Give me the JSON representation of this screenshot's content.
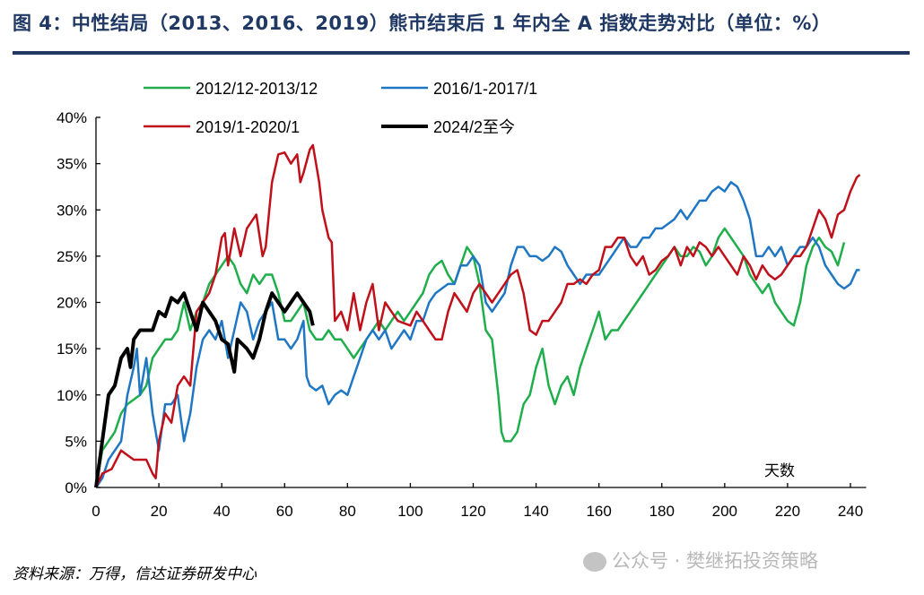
{
  "title": "图 4：中性结局（2013、2016、2019）熊市结束后 1 年内全 A 指数走势对比（单位：%）",
  "source": "资料来源：万得，信达证券研发中心",
  "watermark": "公众号 · 樊继拓投资策略",
  "chart_data": {
    "type": "line",
    "title": "",
    "xlabel": "天数",
    "ylabel": "",
    "xlim": [
      0,
      245
    ],
    "ylim": [
      0,
      40
    ],
    "xticks": [
      0,
      20,
      40,
      60,
      80,
      100,
      120,
      140,
      160,
      180,
      200,
      220,
      240
    ],
    "yticks": [
      "0%",
      "5%",
      "10%",
      "15%",
      "20%",
      "25%",
      "30%",
      "35%",
      "40%"
    ],
    "grid": false,
    "legend_position": "top",
    "series": [
      {
        "name": "2012/12-2013/12",
        "color": "#1fae4b",
        "width": 2.5,
        "x": [
          0,
          2,
          4,
          6,
          8,
          10,
          12,
          14,
          16,
          18,
          20,
          22,
          24,
          26,
          28,
          30,
          32,
          34,
          36,
          38,
          40,
          42,
          44,
          46,
          48,
          50,
          52,
          54,
          56,
          58,
          60,
          62,
          64,
          66,
          68,
          70,
          72,
          74,
          76,
          78,
          80,
          82,
          84,
          86,
          88,
          90,
          92,
          94,
          96,
          98,
          100,
          102,
          104,
          106,
          108,
          110,
          112,
          114,
          116,
          118,
          120,
          122,
          124,
          126,
          128,
          129,
          130,
          132,
          134,
          136,
          138,
          140,
          142,
          144,
          146,
          148,
          150,
          152,
          154,
          156,
          158,
          160,
          162,
          164,
          166,
          168,
          170,
          172,
          174,
          176,
          178,
          180,
          182,
          184,
          186,
          188,
          190,
          192,
          194,
          196,
          198,
          200,
          202,
          204,
          206,
          208,
          210,
          212,
          214,
          216,
          218,
          220,
          222,
          224,
          226,
          228,
          230,
          232,
          234,
          236,
          238
        ],
        "y": [
          0,
          4,
          5,
          6,
          8,
          9,
          9.5,
          10,
          11,
          14,
          15,
          16,
          16,
          17,
          20,
          17,
          19,
          20,
          22,
          23,
          24,
          25,
          24,
          22,
          21,
          23,
          22,
          23,
          23,
          21,
          18,
          18,
          19,
          20,
          17,
          16,
          16,
          17,
          16,
          16,
          15,
          14,
          15,
          16,
          17,
          18,
          17,
          18,
          19,
          18,
          19,
          20,
          21,
          23,
          24,
          24.5,
          23,
          22,
          24,
          26,
          25,
          22,
          17,
          16,
          10,
          6,
          5,
          5,
          6,
          9,
          10,
          13,
          15,
          11,
          9,
          11,
          12,
          10,
          13,
          15,
          17,
          19,
          16,
          17,
          17,
          18,
          19,
          20,
          21,
          22,
          23,
          24,
          25,
          26,
          25,
          25,
          26,
          25.5,
          24,
          25,
          27,
          28,
          27,
          26,
          25,
          23,
          22,
          21,
          22,
          20,
          19,
          18,
          17.5,
          20,
          24,
          26,
          27,
          26,
          25.5,
          24,
          26.5
        ]
      },
      {
        "name": "2016/1-2017/1",
        "color": "#1f77c4",
        "width": 2.5,
        "x": [
          0,
          2,
          4,
          6,
          8,
          10,
          12,
          13,
          14,
          16,
          17,
          18,
          20,
          22,
          24,
          26,
          28,
          30,
          32,
          34,
          36,
          38,
          40,
          42,
          44,
          46,
          48,
          50,
          52,
          54,
          56,
          58,
          60,
          62,
          64,
          66,
          67,
          68,
          70,
          72,
          74,
          76,
          78,
          80,
          82,
          84,
          86,
          88,
          90,
          92,
          94,
          96,
          98,
          100,
          102,
          104,
          106,
          108,
          110,
          112,
          114,
          116,
          118,
          120,
          122,
          124,
          126,
          128,
          130,
          132,
          134,
          136,
          138,
          140,
          142,
          144,
          146,
          148,
          150,
          152,
          154,
          156,
          158,
          160,
          162,
          164,
          166,
          168,
          170,
          172,
          174,
          176,
          178,
          180,
          182,
          184,
          186,
          188,
          190,
          192,
          194,
          196,
          198,
          200,
          202,
          204,
          206,
          208,
          210,
          212,
          214,
          216,
          218,
          220,
          222,
          224,
          226,
          228,
          230,
          232,
          234,
          236,
          238,
          240,
          242,
          243
        ],
        "y": [
          0,
          1,
          3,
          4,
          5,
          10,
          13,
          15,
          10,
          14,
          11,
          8,
          4,
          9,
          9,
          10,
          5,
          8,
          13,
          16,
          17,
          16,
          18,
          14,
          17,
          20,
          19,
          16,
          18,
          19,
          20,
          16,
          16,
          15,
          16,
          18,
          12,
          11,
          10.5,
          11,
          9,
          10,
          10.5,
          10,
          12,
          14,
          16,
          17,
          16,
          17,
          15,
          16,
          17,
          16,
          18,
          18,
          20,
          21,
          21.5,
          22,
          22,
          24,
          24,
          25,
          24,
          20,
          19,
          20,
          21,
          24,
          26,
          26,
          25,
          25,
          24.5,
          25,
          26,
          25.5,
          24,
          23,
          22,
          23,
          23,
          23,
          24,
          25,
          26,
          27,
          26,
          26,
          27,
          27,
          28,
          28,
          28.5,
          29,
          30,
          29,
          30,
          31,
          31,
          32,
          32.5,
          32,
          33,
          32.5,
          31,
          29,
          25,
          25,
          26,
          25,
          26,
          24,
          25,
          26,
          26,
          27,
          26,
          24,
          23,
          22,
          21.5,
          22,
          23.5,
          23.5
        ]
      },
      {
        "name": "2019/1-2020/1",
        "color": "#c0101a",
        "width": 2.5,
        "x": [
          0,
          2,
          5,
          8,
          10,
          12,
          14,
          16,
          18,
          19,
          20,
          22,
          24,
          26,
          28,
          30,
          32,
          34,
          36,
          38,
          40,
          41,
          42,
          44,
          46,
          48,
          50,
          51,
          53,
          54,
          56,
          58,
          60,
          62,
          64,
          65,
          66,
          68,
          69,
          71,
          72,
          74,
          75,
          76,
          78,
          80,
          82,
          84,
          86,
          88,
          90,
          92,
          94,
          96,
          100,
          102,
          104,
          106,
          108,
          110,
          112,
          114,
          116,
          118,
          120,
          122,
          124,
          126,
          128,
          130,
          132,
          134,
          136,
          138,
          140,
          142,
          144,
          146,
          148,
          150,
          152,
          154,
          156,
          158,
          160,
          162,
          164,
          166,
          168,
          170,
          172,
          174,
          176,
          178,
          180,
          182,
          184,
          186,
          188,
          190,
          192,
          194,
          196,
          198,
          200,
          202,
          204,
          206,
          208,
          210,
          212,
          214,
          216,
          218,
          220,
          222,
          224,
          226,
          228,
          230,
          232,
          234,
          236,
          238,
          240,
          242,
          243
        ],
        "y": [
          0,
          1.5,
          2,
          4,
          3.5,
          3,
          3,
          3,
          1.5,
          1,
          5,
          8,
          7,
          11,
          12,
          11,
          19,
          20,
          21,
          23,
          27,
          27.5,
          24,
          28,
          25,
          28,
          29,
          29.5,
          25,
          26,
          33,
          36,
          36.2,
          35,
          36,
          33,
          34,
          36.5,
          37,
          33,
          30,
          27,
          26.5,
          18,
          19,
          17,
          21,
          17,
          20,
          22,
          17,
          20,
          19,
          18,
          17.5,
          19,
          18,
          17,
          16,
          16,
          19,
          21,
          20,
          19,
          21,
          22,
          21,
          20,
          21,
          22,
          23,
          23.5,
          21,
          17,
          16.5,
          18,
          18,
          19,
          20,
          22,
          22,
          22.5,
          22,
          23,
          23.5,
          26,
          26,
          27,
          27,
          25,
          24,
          25,
          23,
          23.5,
          24.5,
          25,
          26,
          24,
          26,
          25,
          26.5,
          26,
          25,
          26,
          25,
          24,
          23,
          25,
          24,
          22.5,
          24,
          23,
          22.5,
          23,
          24,
          25,
          25,
          26,
          28,
          30,
          29,
          27,
          29.5,
          30,
          32,
          33.5,
          33.8
        ]
      },
      {
        "name": "2024/2至今",
        "color": "#000000",
        "width": 4,
        "x": [
          0,
          2,
          4,
          6,
          8,
          10,
          11,
          12,
          14,
          16,
          18,
          20,
          22,
          24,
          26,
          28,
          30,
          32,
          34,
          36,
          38,
          40,
          42,
          44,
          45,
          48,
          50,
          52,
          54,
          56,
          58,
          60,
          62,
          64,
          66,
          68,
          69
        ],
        "y": [
          0,
          5,
          10,
          11,
          14,
          15,
          13,
          16,
          17,
          17,
          17,
          19,
          18.5,
          20.5,
          20,
          21,
          19,
          17,
          20,
          19,
          18,
          16,
          15.5,
          12.5,
          16,
          15,
          14,
          16,
          19,
          21,
          20,
          19,
          20,
          21,
          20,
          19,
          17.5
        ]
      }
    ]
  }
}
